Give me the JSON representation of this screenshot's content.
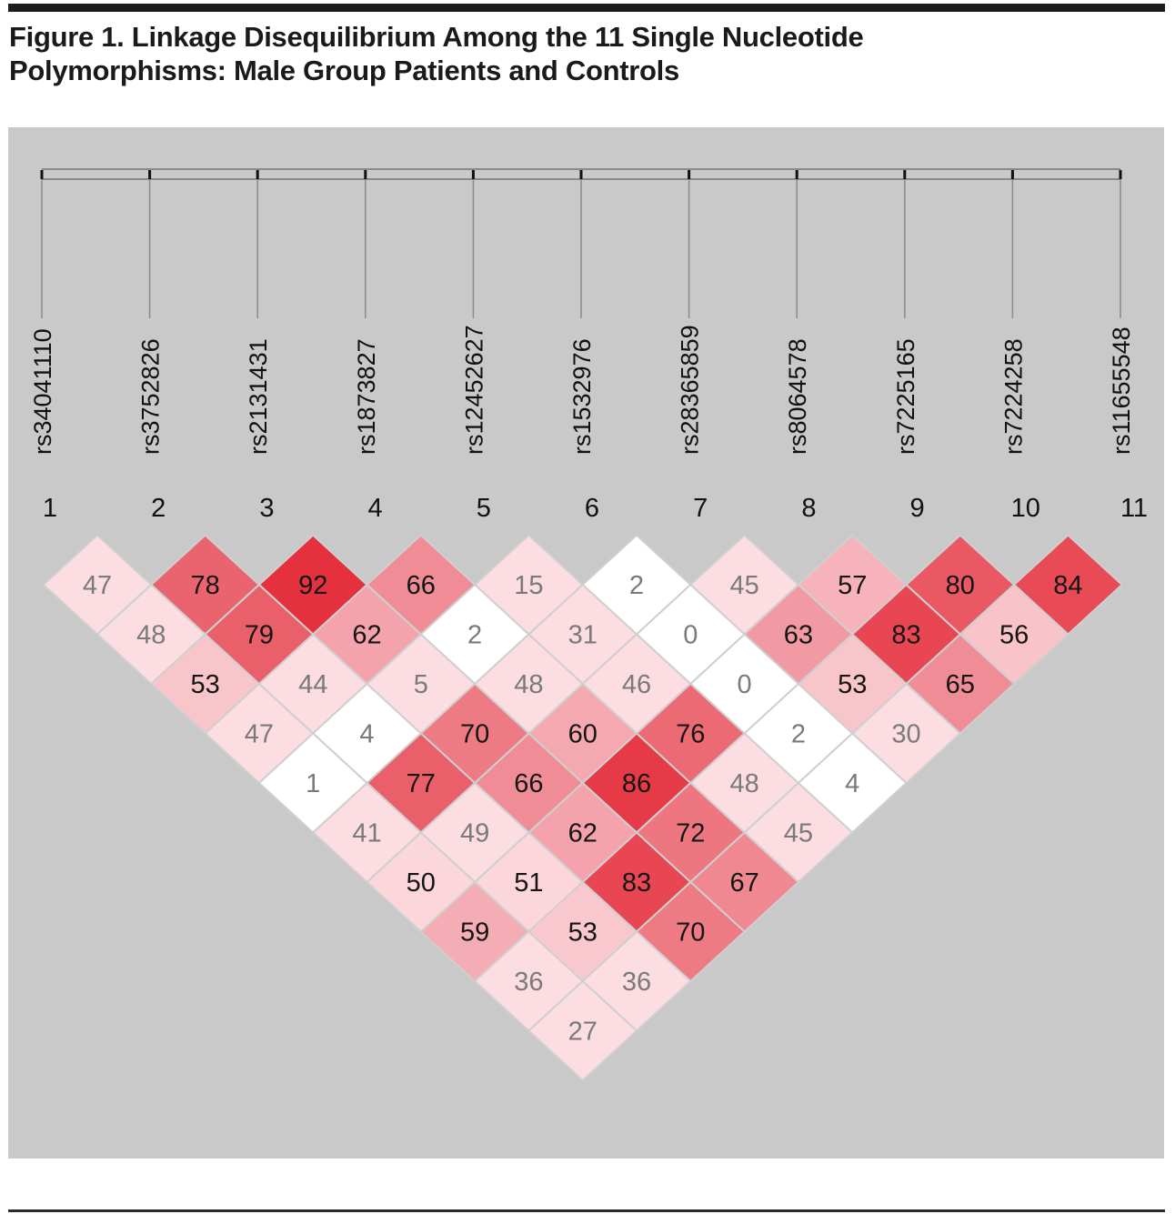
{
  "figure": {
    "title_line1": "Figure 1. Linkage Disequilibrium Among the 11 Single Nucleotide",
    "title_line2": "Polymorphisms: Male Group Patients and Controls"
  },
  "chart_data": {
    "type": "heatmap",
    "title": "Figure 1. Linkage Disequilibrium Among the 11 Single Nucleotide Polymorphisms: Male Group Patients and Controls",
    "layout": "triangular-ld-plot",
    "snps": [
      "rs34041110",
      "rs3752826",
      "rs2131431",
      "rs1873827",
      "rs12452627",
      "rs1532976",
      "rs28365859",
      "rs8064578",
      "rs7225165",
      "rs7224258",
      "rs11655548"
    ],
    "indices": [
      "1",
      "2",
      "3",
      "4",
      "5",
      "6",
      "7",
      "8",
      "9",
      "10",
      "11"
    ],
    "value_meaning": "pairwise LD value between SNP i and SNP j (row = j - i - 1, column = i)",
    "colors": {
      "panel_bg": "#c9c9c9",
      "cell_border": "#cfcfcf",
      "text_dark": "#151515",
      "text_light": "#7a7a7a"
    },
    "rows": [
      [
        {
          "v": "47",
          "fill": "#fbdde2",
          "dark": false
        },
        {
          "v": "78",
          "fill": "#ea6470",
          "dark": true
        },
        {
          "v": "92",
          "fill": "#e5303d",
          "dark": true
        },
        {
          "v": "66",
          "fill": "#f08c96",
          "dark": true
        },
        {
          "v": "15",
          "fill": "#fbdde2",
          "dark": false
        },
        {
          "v": "2",
          "fill": "#ffffff",
          "dark": false
        },
        {
          "v": "45",
          "fill": "#fbdde2",
          "dark": false
        },
        {
          "v": "57",
          "fill": "#f6b3bb",
          "dark": true
        },
        {
          "v": "80",
          "fill": "#ea5863",
          "dark": true
        },
        {
          "v": "84",
          "fill": "#e84a56",
          "dark": true
        }
      ],
      [
        {
          "v": "48",
          "fill": "#fbdde2",
          "dark": false
        },
        {
          "v": "79",
          "fill": "#e95f6a",
          "dark": true
        },
        {
          "v": "62",
          "fill": "#f4a3ac",
          "dark": true
        },
        {
          "v": "2",
          "fill": "#ffffff",
          "dark": false
        },
        {
          "v": "31",
          "fill": "#fbdde2",
          "dark": false
        },
        {
          "v": "0",
          "fill": "#ffffff",
          "dark": false
        },
        {
          "v": "63",
          "fill": "#f29aa3",
          "dark": true
        },
        {
          "v": "83",
          "fill": "#e84653",
          "dark": true
        },
        {
          "v": "56",
          "fill": "#f8c3c9",
          "dark": true
        }
      ],
      [
        {
          "v": "53",
          "fill": "#f8c5cb",
          "dark": true
        },
        {
          "v": "44",
          "fill": "#fbdde2",
          "dark": false
        },
        {
          "v": "5",
          "fill": "#fbdde2",
          "dark": false
        },
        {
          "v": "48",
          "fill": "#fbdde2",
          "dark": false
        },
        {
          "v": "46",
          "fill": "#fbdde2",
          "dark": false
        },
        {
          "v": "0",
          "fill": "#ffffff",
          "dark": false
        },
        {
          "v": "53",
          "fill": "#f8c5cb",
          "dark": true
        },
        {
          "v": "65",
          "fill": "#f08c96",
          "dark": true
        }
      ],
      [
        {
          "v": "47",
          "fill": "#fbdde2",
          "dark": false
        },
        {
          "v": "4",
          "fill": "#ffffff",
          "dark": false
        },
        {
          "v": "70",
          "fill": "#ee7a84",
          "dark": true
        },
        {
          "v": "60",
          "fill": "#f4a9b1",
          "dark": true
        },
        {
          "v": "76",
          "fill": "#eb6a74",
          "dark": true
        },
        {
          "v": "2",
          "fill": "#ffffff",
          "dark": false
        },
        {
          "v": "30",
          "fill": "#fbdde2",
          "dark": false
        }
      ],
      [
        {
          "v": "1",
          "fill": "#ffffff",
          "dark": false
        },
        {
          "v": "77",
          "fill": "#e95f6a",
          "dark": true
        },
        {
          "v": "66",
          "fill": "#f08c96",
          "dark": true
        },
        {
          "v": "86",
          "fill": "#e63a47",
          "dark": true
        },
        {
          "v": "48",
          "fill": "#fbdde2",
          "dark": false
        },
        {
          "v": "4",
          "fill": "#ffffff",
          "dark": false
        }
      ],
      [
        {
          "v": "41",
          "fill": "#fbdde2",
          "dark": false
        },
        {
          "v": "49",
          "fill": "#fbdde2",
          "dark": false
        },
        {
          "v": "62",
          "fill": "#f4a3ac",
          "dark": true
        },
        {
          "v": "72",
          "fill": "#ee7680",
          "dark": true
        },
        {
          "v": "45",
          "fill": "#fbdde2",
          "dark": false
        }
      ],
      [
        {
          "v": "50",
          "fill": "#fbd6db",
          "dark": true
        },
        {
          "v": "51",
          "fill": "#fbd6db",
          "dark": true
        },
        {
          "v": "83",
          "fill": "#e84653",
          "dark": true
        },
        {
          "v": "67",
          "fill": "#f08892",
          "dark": true
        }
      ],
      [
        {
          "v": "59",
          "fill": "#f4adb5",
          "dark": true
        },
        {
          "v": "53",
          "fill": "#f8c8ce",
          "dark": true
        },
        {
          "v": "70",
          "fill": "#ee7a84",
          "dark": true
        }
      ],
      [
        {
          "v": "36",
          "fill": "#fbdde2",
          "dark": false
        },
        {
          "v": "36",
          "fill": "#fbdde2",
          "dark": false
        }
      ],
      [
        {
          "v": "27",
          "fill": "#fbdde2",
          "dark": false
        }
      ]
    ]
  }
}
